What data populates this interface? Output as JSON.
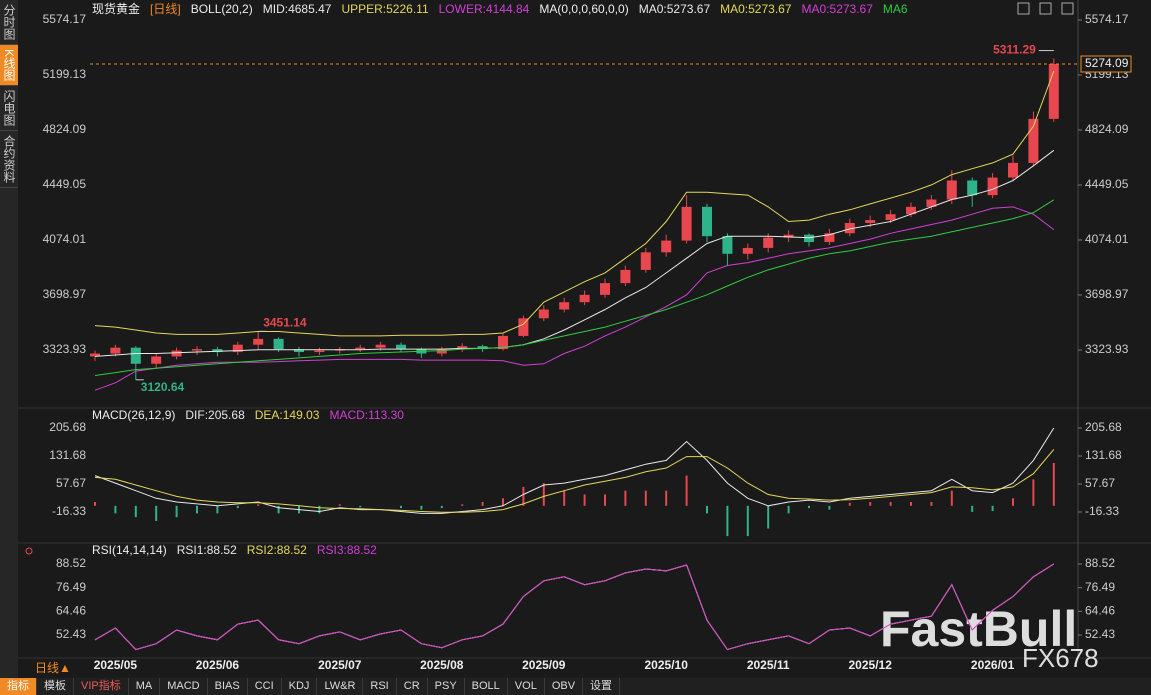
{
  "sidebar": [
    "分时图",
    "K线图",
    "闪电图",
    "合约资料"
  ],
  "toolbar": {
    "period": "日线▲",
    "items": [
      "指标",
      "模板",
      "VIP指标",
      "MA",
      "MACD",
      "BIAS",
      "CCI",
      "KDJ",
      "LW&R",
      "RSI",
      "CR",
      "PSY",
      "BOLL",
      "VOL",
      "OBV",
      "设置"
    ]
  },
  "watermark": {
    "brand": "FastBull",
    "sub": "FX678"
  },
  "chart_data": [
    {
      "type": "candlestick",
      "title": "现货黄金",
      "subtitle": "[日线]",
      "indicator": "BOLL(20,2)",
      "ma_indicator": "MA(0,0,0,60,0,0)",
      "categories": [
        null,
        "2025/05",
        null,
        null,
        null,
        null,
        "2025/06",
        null,
        null,
        null,
        null,
        null,
        "2025/07",
        null,
        null,
        null,
        null,
        "2025/08",
        null,
        null,
        null,
        null,
        "2025/09",
        null,
        null,
        null,
        null,
        null,
        "2025/10",
        null,
        null,
        null,
        null,
        "2025/11",
        null,
        null,
        null,
        null,
        "2025/12",
        null,
        null,
        null,
        null,
        null,
        "2026/01",
        null,
        null,
        null
      ],
      "open": [
        3280,
        3300,
        3340,
        3230,
        3280,
        3320,
        3330,
        3310,
        3360,
        3400,
        3330,
        3310,
        3320,
        3330,
        3340,
        3360,
        3330,
        3300,
        3330,
        3350,
        3330,
        3420,
        3540,
        3600,
        3650,
        3700,
        3780,
        3870,
        3990,
        4070,
        4300,
        4100,
        3980,
        4020,
        4090,
        4110,
        4060,
        4120,
        4190,
        4210,
        4250,
        4300,
        4350,
        4480,
        4380,
        4500,
        4600,
        4900
      ],
      "high": [
        3320,
        3360,
        3350,
        3300,
        3340,
        3350,
        3345,
        3380,
        3451.14,
        3410,
        3345,
        3340,
        3345,
        3360,
        3380,
        3375,
        3340,
        3345,
        3370,
        3360,
        3440,
        3560,
        3630,
        3680,
        3730,
        3810,
        3900,
        4020,
        4110,
        4380,
        4320,
        4120,
        4050,
        4120,
        4140,
        4120,
        4150,
        4220,
        4240,
        4280,
        4330,
        4380,
        4550,
        4500,
        4530,
        4650,
        4950,
        5311.29
      ],
      "low": [
        3250,
        3280,
        3120.64,
        3200,
        3260,
        3290,
        3280,
        3290,
        3330,
        3310,
        3280,
        3290,
        3300,
        3310,
        3320,
        3310,
        3270,
        3280,
        3310,
        3310,
        3320,
        3410,
        3520,
        3580,
        3630,
        3680,
        3760,
        3850,
        3960,
        4050,
        4060,
        3900,
        3940,
        3990,
        4060,
        4030,
        4040,
        4100,
        4160,
        4190,
        4230,
        4280,
        4320,
        4300,
        4360,
        4480,
        4580,
        4880
      ],
      "close": [
        3300,
        3340,
        3230,
        3280,
        3320,
        3330,
        3310,
        3360,
        3400,
        3330,
        3310,
        3320,
        3330,
        3340,
        3360,
        3330,
        3300,
        3330,
        3350,
        3330,
        3420,
        3540,
        3600,
        3650,
        3700,
        3780,
        3870,
        3990,
        4070,
        4300,
        4100,
        3980,
        4020,
        4090,
        4110,
        4060,
        4120,
        4190,
        4210,
        4250,
        4300,
        4350,
        4480,
        4380,
        4500,
        4600,
        4900,
        5274.09
      ],
      "up_color": "#e8474f",
      "down_color": "#2fb38a",
      "series": [
        {
          "name": "MID:4685.47",
          "color": "#e8e8e8",
          "values": [
            3280,
            3290,
            3300,
            3300,
            3305,
            3310,
            3315,
            3320,
            3325,
            3325,
            3325,
            3325,
            3325,
            3325,
            3330,
            3330,
            3330,
            3330,
            3335,
            3335,
            3340,
            3360,
            3400,
            3460,
            3530,
            3600,
            3680,
            3750,
            3850,
            3950,
            4050,
            4100,
            4100,
            4100,
            4095,
            4090,
            4110,
            4150,
            4175,
            4200,
            4250,
            4300,
            4350,
            4380,
            4420,
            4480,
            4580,
            4685.47
          ]
        },
        {
          "name": "UPPER:5226.11",
          "color": "#e3d85a",
          "values": [
            3490,
            3480,
            3460,
            3440,
            3430,
            3430,
            3430,
            3440,
            3450,
            3450,
            3440,
            3430,
            3420,
            3420,
            3420,
            3425,
            3425,
            3425,
            3430,
            3430,
            3440,
            3500,
            3650,
            3720,
            3790,
            3850,
            3950,
            4050,
            4200,
            4400,
            4400,
            4390,
            4380,
            4300,
            4200,
            4210,
            4250,
            4280,
            4320,
            4360,
            4400,
            4450,
            4520,
            4560,
            4600,
            4660,
            4850,
            5226.11
          ]
        },
        {
          "name": "LOWER:4144.84",
          "color": "#d23fd6",
          "values": [
            3050,
            3100,
            3180,
            3200,
            3220,
            3230,
            3240,
            3240,
            3240,
            3245,
            3250,
            3255,
            3260,
            3260,
            3260,
            3260,
            3255,
            3255,
            3255,
            3255,
            3250,
            3220,
            3230,
            3300,
            3350,
            3420,
            3480,
            3550,
            3620,
            3700,
            3850,
            3900,
            3920,
            3950,
            3980,
            4000,
            4020,
            4050,
            4080,
            4120,
            4150,
            4180,
            4210,
            4250,
            4290,
            4300,
            4250,
            4144.84
          ]
        },
        {
          "name": "MA6",
          "color": "#2ecc40",
          "values": [
            3150,
            3170,
            3190,
            3200,
            3210,
            3220,
            3230,
            3240,
            3250,
            3260,
            3270,
            3280,
            3290,
            3300,
            3305,
            3310,
            3315,
            3320,
            3330,
            3335,
            3340,
            3360,
            3390,
            3420,
            3450,
            3480,
            3520,
            3560,
            3600,
            3650,
            3700,
            3760,
            3820,
            3870,
            3910,
            3950,
            3980,
            4000,
            4030,
            4060,
            4080,
            4100,
            4130,
            4160,
            4190,
            4220,
            4260,
            4348
          ]
        }
      ],
      "ma_labels": [
        {
          "label": "MA0:5273.67",
          "color": "#e8e8e8"
        },
        {
          "label": "MA0:5273.67",
          "color": "#e3d85a"
        },
        {
          "label": "MA0:5273.67",
          "color": "#d23fd6"
        }
      ],
      "annotations": [
        {
          "value": 5311.29,
          "label": "5311.29",
          "color": "#e8474f"
        },
        {
          "value": 3451.14,
          "label": "3451.14",
          "color": "#e8474f"
        },
        {
          "value": 3120.64,
          "label": "3120.64",
          "color": "#2fb38a"
        }
      ],
      "last_price": {
        "value": 5274.09,
        "label": "5274.09",
        "color": "#f08a24"
      },
      "ylim": [
        2948.89,
        5574.17
      ],
      "yticks": [
        3323.93,
        3698.97,
        4074.01,
        4449.05,
        4824.09,
        5199.13,
        5574.17
      ]
    },
    {
      "type": "macd",
      "title": "MACD(26,12,9)",
      "ylim": [
        -103.55,
        232.11
      ],
      "yticks": [
        -16.33,
        57.67,
        131.68,
        205.68
      ],
      "series": [
        {
          "name": "DIF:205.68",
          "color": "#e8e8e8",
          "values": [
            80,
            60,
            40,
            20,
            10,
            5,
            0,
            5,
            10,
            -5,
            -10,
            -15,
            -5,
            -10,
            -10,
            -15,
            -20,
            -20,
            -15,
            -10,
            0,
            30,
            55,
            60,
            70,
            80,
            95,
            110,
            120,
            170,
            120,
            60,
            20,
            0,
            10,
            15,
            10,
            20,
            25,
            30,
            35,
            40,
            70,
            40,
            35,
            60,
            120,
            205.68
          ]
        },
        {
          "name": "DEA:149.03",
          "color": "#e3d85a",
          "values": [
            75,
            70,
            55,
            40,
            25,
            15,
            10,
            8,
            8,
            5,
            0,
            -5,
            -7,
            -8,
            -10,
            -12,
            -15,
            -17,
            -17,
            -15,
            -10,
            5,
            25,
            40,
            55,
            65,
            75,
            90,
            100,
            130,
            130,
            100,
            60,
            30,
            20,
            18,
            15,
            16,
            20,
            25,
            30,
            35,
            50,
            48,
            42,
            50,
            85,
            149.03
          ]
        }
      ],
      "histogram": {
        "name": "MACD:113.30",
        "color": "#d23fd6",
        "up_color": "#e8474f",
        "down_color": "#2fb38a",
        "values": [
          10,
          -20,
          -30,
          -40,
          -30,
          -20,
          -20,
          -6,
          4,
          -20,
          -20,
          -20,
          4,
          -4,
          0,
          -6,
          -10,
          -6,
          4,
          10,
          20,
          50,
          60,
          40,
          30,
          30,
          40,
          40,
          40,
          80,
          -20,
          -80,
          -80,
          -60,
          -20,
          -6,
          -10,
          8,
          10,
          10,
          10,
          10,
          40,
          -16,
          -14,
          20,
          70,
          113.3
        ]
      }
    },
    {
      "type": "rsi",
      "title": "RSI(14,14,14)",
      "ylim": [
        42.28,
        93.09
      ],
      "yticks": [
        52.43,
        64.46,
        76.49,
        88.52
      ],
      "series": [
        {
          "name": "RSI1:88.52",
          "color": "#e8e8e8",
          "values": [
            50,
            56,
            45,
            48,
            55,
            52,
            50,
            58,
            60,
            50,
            48,
            52,
            54,
            50,
            53,
            55,
            48,
            46,
            50,
            52,
            58,
            72,
            80,
            82,
            78,
            80,
            84,
            86,
            85,
            88,
            60,
            45,
            48,
            50,
            52,
            48,
            55,
            56,
            52,
            58,
            60,
            62,
            78,
            55,
            65,
            72,
            82,
            88.52
          ]
        },
        {
          "name": "RSI2:88.52",
          "color": "#e3d85a",
          "values": [
            50,
            56,
            45,
            48,
            55,
            52,
            50,
            58,
            60,
            50,
            48,
            52,
            54,
            50,
            53,
            55,
            48,
            46,
            50,
            52,
            58,
            72,
            80,
            82,
            78,
            80,
            84,
            86,
            85,
            88,
            60,
            45,
            48,
            50,
            52,
            48,
            55,
            56,
            52,
            58,
            60,
            62,
            78,
            55,
            65,
            72,
            82,
            88.52
          ]
        },
        {
          "name": "RSI3:88.52",
          "color": "#d23fd6",
          "values": [
            50,
            56,
            45,
            48,
            55,
            52,
            50,
            58,
            60,
            50,
            48,
            52,
            54,
            50,
            53,
            55,
            48,
            46,
            50,
            52,
            58,
            72,
            80,
            82,
            78,
            80,
            84,
            86,
            85,
            88,
            60,
            45,
            48,
            50,
            52,
            48,
            55,
            56,
            52,
            58,
            60,
            62,
            78,
            55,
            65,
            72,
            82,
            88.52
          ]
        }
      ]
    }
  ]
}
